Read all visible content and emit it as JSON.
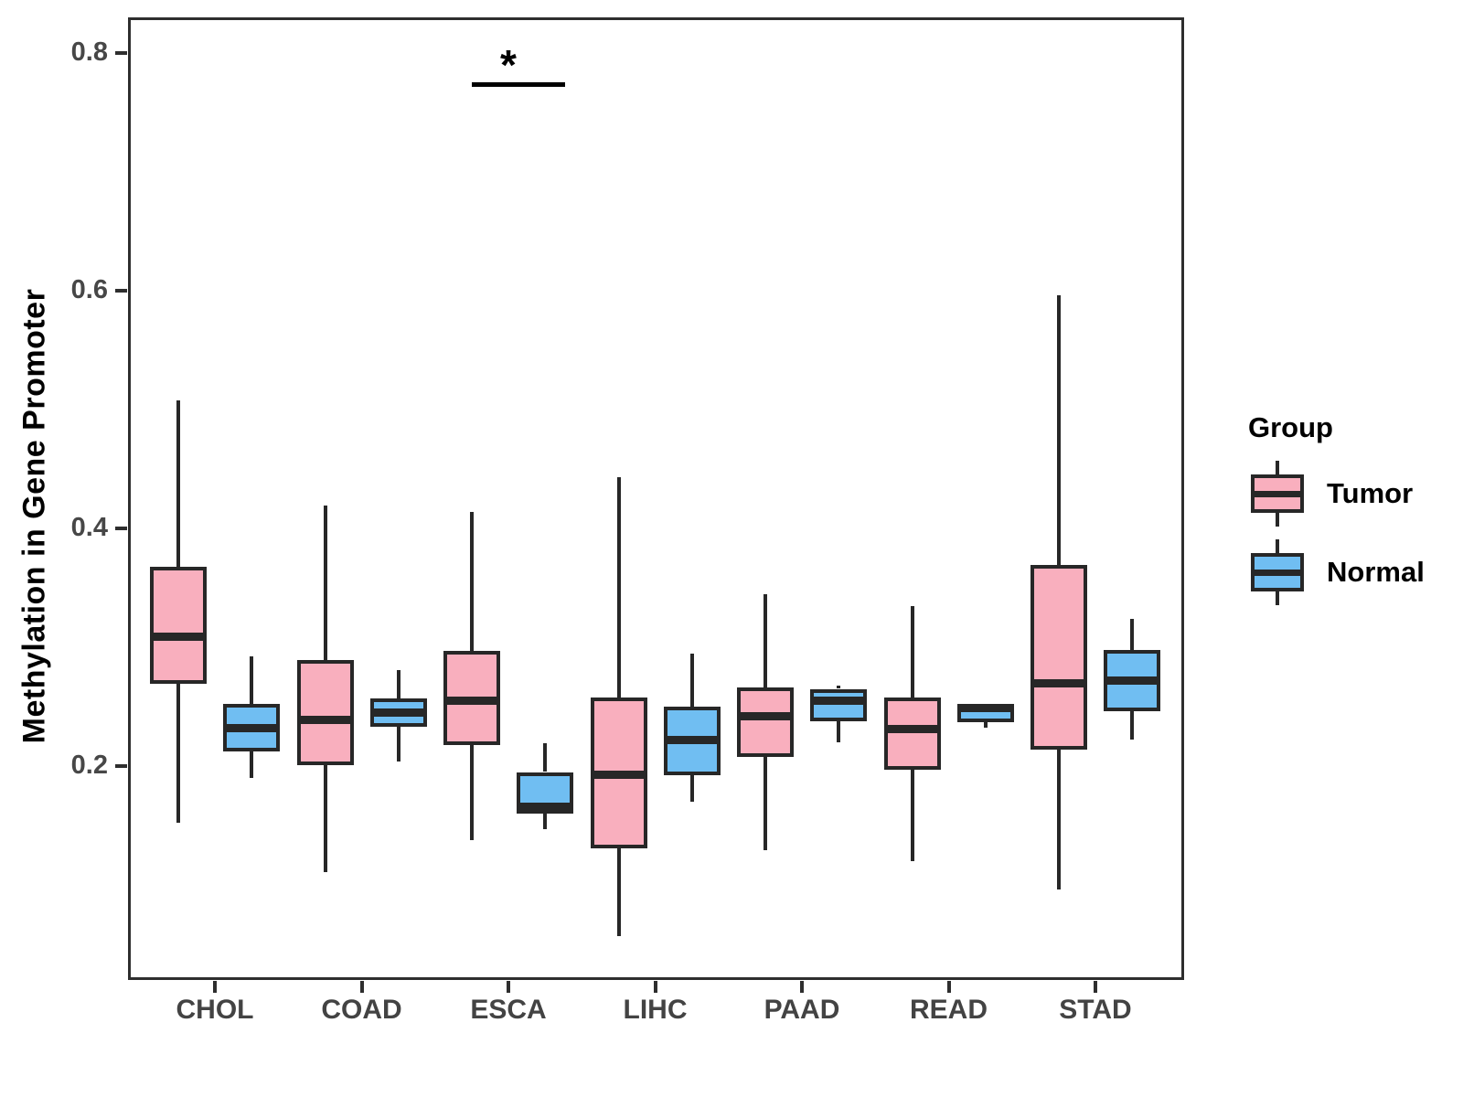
{
  "chart_data": {
    "type": "grouped_boxplot",
    "title": "",
    "xlabel": "",
    "ylabel": "Methylation in Gene Promoter",
    "categories": [
      "CHOL",
      "COAD",
      "ESCA",
      "LIHC",
      "PAAD",
      "READ",
      "STAD"
    ],
    "y_ticks": [
      {
        "value": 0.8,
        "label": "0.8"
      },
      {
        "value": 0.6,
        "label": "0.6"
      },
      {
        "value": 0.4,
        "label": "0.4"
      },
      {
        "value": 0.2,
        "label": "0.2"
      }
    ],
    "ylim": [
      0.02,
      0.83
    ],
    "grid": false,
    "legend": {
      "title": "Group",
      "position": "right",
      "entries": [
        {
          "label": "Tumor",
          "color": "#F9AFBE"
        },
        {
          "label": "Normal",
          "color": "#70BEF2"
        }
      ]
    },
    "colors": {
      "tumor_fill": "#F9AFBE",
      "normal_fill": "#70BEF2",
      "stroke": "#272727"
    },
    "series": [
      {
        "name": "Tumor",
        "color": "#F9AFBE",
        "boxes": [
          {
            "category": "CHOL",
            "whisker_low": 0.152,
            "q1": 0.269,
            "median": 0.309,
            "q3": 0.368,
            "whisker_high": 0.508
          },
          {
            "category": "COAD",
            "whisker_low": 0.111,
            "q1": 0.201,
            "median": 0.239,
            "q3": 0.289,
            "whisker_high": 0.419
          },
          {
            "category": "ESCA",
            "whisker_low": 0.138,
            "q1": 0.218,
            "median": 0.255,
            "q3": 0.297,
            "whisker_high": 0.414
          },
          {
            "category": "LIHC",
            "whisker_low": 0.057,
            "q1": 0.131,
            "median": 0.193,
            "q3": 0.258,
            "whisker_high": 0.443
          },
          {
            "category": "PAAD",
            "whisker_low": 0.129,
            "q1": 0.208,
            "median": 0.242,
            "q3": 0.266,
            "whisker_high": 0.345
          },
          {
            "category": "READ",
            "whisker_low": 0.12,
            "q1": 0.197,
            "median": 0.231,
            "q3": 0.258,
            "whisker_high": 0.335
          },
          {
            "category": "STAD",
            "whisker_low": 0.096,
            "q1": 0.214,
            "median": 0.27,
            "q3": 0.369,
            "whisker_high": 0.596
          }
        ]
      },
      {
        "name": "Normal",
        "color": "#70BEF2",
        "boxes": [
          {
            "category": "CHOL",
            "whisker_low": 0.19,
            "q1": 0.212,
            "median": 0.232,
            "q3": 0.252,
            "whisker_high": 0.292
          },
          {
            "category": "COAD",
            "whisker_low": 0.204,
            "q1": 0.233,
            "median": 0.245,
            "q3": 0.257,
            "whisker_high": 0.281
          },
          {
            "category": "ESCA",
            "whisker_low": 0.147,
            "q1": 0.16,
            "median": 0.166,
            "q3": 0.195,
            "whisker_high": 0.219
          },
          {
            "category": "LIHC",
            "whisker_low": 0.17,
            "q1": 0.192,
            "median": 0.222,
            "q3": 0.25,
            "whisker_high": 0.295
          },
          {
            "category": "PAAD",
            "whisker_low": 0.22,
            "q1": 0.238,
            "median": 0.255,
            "q3": 0.265,
            "whisker_high": 0.268
          },
          {
            "category": "READ",
            "whisker_low": 0.232,
            "q1": 0.237,
            "median": 0.249,
            "q3": 0.251,
            "whisker_high": 0.252
          },
          {
            "category": "STAD",
            "whisker_low": 0.222,
            "q1": 0.246,
            "median": 0.272,
            "q3": 0.298,
            "whisker_high": 0.324
          }
        ]
      }
    ],
    "annotation": {
      "label": "*",
      "category": "ESCA",
      "bar_y": 0.774,
      "label_y": 0.792
    }
  }
}
